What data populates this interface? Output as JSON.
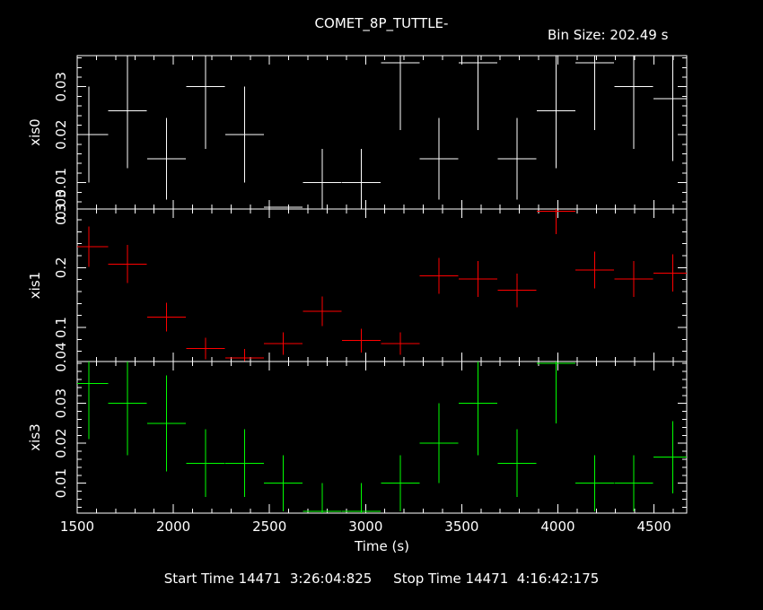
{
  "header": {
    "title": "COMET_8P_TUTTLE-",
    "bin_size": "Bin Size: 202.49 s"
  },
  "footer": {
    "time_range": "Start Time 14471  3:26:04:825     Stop Time 14471  4:16:42:175"
  },
  "chart_data": [
    {
      "type": "scatter",
      "error_bars": true,
      "ylabel": "xis0",
      "color": "#ffffff",
      "xlim": [
        1500,
        4670
      ],
      "ylim": [
        0.0045,
        0.0365
      ],
      "yticks": [
        0.01,
        0.02,
        0.03
      ],
      "y_tick_labels": [
        "0.01",
        "0.02",
        "0.03"
      ],
      "bottom_tick_label": "0.03",
      "points": [
        {
          "x": 1560,
          "xerr": 100,
          "y": 0.02,
          "yerr": 0.01
        },
        {
          "x": 1762,
          "xerr": 100,
          "y": 0.025,
          "yerr": 0.012
        },
        {
          "x": 1965,
          "xerr": 100,
          "y": 0.015,
          "yerr": 0.0085
        },
        {
          "x": 2167,
          "xerr": 100,
          "y": 0.03,
          "yerr": 0.013
        },
        {
          "x": 2370,
          "xerr": 100,
          "y": 0.02,
          "yerr": 0.01
        },
        {
          "x": 2572,
          "xerr": 100,
          "y": 0.0049,
          "yerr": 0.0
        },
        {
          "x": 2775,
          "xerr": 100,
          "y": 0.01,
          "yerr": 0.007
        },
        {
          "x": 2977,
          "xerr": 100,
          "y": 0.01,
          "yerr": 0.007
        },
        {
          "x": 3180,
          "xerr": 100,
          "y": 0.035,
          "yerr": 0.014
        },
        {
          "x": 3382,
          "xerr": 100,
          "y": 0.015,
          "yerr": 0.0085
        },
        {
          "x": 3585,
          "xerr": 100,
          "y": 0.035,
          "yerr": 0.014
        },
        {
          "x": 3787,
          "xerr": 100,
          "y": 0.015,
          "yerr": 0.0085
        },
        {
          "x": 3990,
          "xerr": 100,
          "y": 0.025,
          "yerr": 0.012
        },
        {
          "x": 4192,
          "xerr": 100,
          "y": 0.035,
          "yerr": 0.014
        },
        {
          "x": 4395,
          "xerr": 100,
          "y": 0.03,
          "yerr": 0.013
        },
        {
          "x": 4597,
          "xerr": 100,
          "y": 0.0275,
          "yerr": 0.013
        }
      ]
    },
    {
      "type": "scatter",
      "error_bars": true,
      "ylabel": "xis1",
      "color": "#ff0000",
      "xlim": [
        1500,
        4670
      ],
      "ylim": [
        0.043,
        0.298
      ],
      "yticks": [
        0.1,
        0.2
      ],
      "y_tick_labels": [
        "0.1",
        "0.2"
      ],
      "bottom_tick_label": "0.04",
      "top_tick_label": "0.3",
      "points": [
        {
          "x": 1560,
          "xerr": 100,
          "y": 0.235,
          "yerr": 0.034
        },
        {
          "x": 1762,
          "xerr": 100,
          "y": 0.206,
          "yerr": 0.032
        },
        {
          "x": 1965,
          "xerr": 100,
          "y": 0.117,
          "yerr": 0.024
        },
        {
          "x": 2167,
          "xerr": 100,
          "y": 0.065,
          "yerr": 0.018
        },
        {
          "x": 2370,
          "xerr": 100,
          "y": 0.049,
          "yerr": 0.015
        },
        {
          "x": 2572,
          "xerr": 100,
          "y": 0.073,
          "yerr": 0.019
        },
        {
          "x": 2775,
          "xerr": 100,
          "y": 0.127,
          "yerr": 0.025
        },
        {
          "x": 2977,
          "xerr": 100,
          "y": 0.078,
          "yerr": 0.02
        },
        {
          "x": 3180,
          "xerr": 100,
          "y": 0.073,
          "yerr": 0.019
        },
        {
          "x": 3382,
          "xerr": 100,
          "y": 0.186,
          "yerr": 0.03
        },
        {
          "x": 3585,
          "xerr": 100,
          "y": 0.181,
          "yerr": 0.03
        },
        {
          "x": 3787,
          "xerr": 100,
          "y": 0.162,
          "yerr": 0.028
        },
        {
          "x": 3990,
          "xerr": 100,
          "y": 0.294,
          "yerr": 0.038
        },
        {
          "x": 4192,
          "xerr": 100,
          "y": 0.196,
          "yerr": 0.031
        },
        {
          "x": 4395,
          "xerr": 100,
          "y": 0.181,
          "yerr": 0.03
        },
        {
          "x": 4597,
          "xerr": 100,
          "y": 0.191,
          "yerr": 0.031
        }
      ]
    },
    {
      "type": "scatter",
      "error_bars": true,
      "ylabel": "xis3",
      "color": "#00ff00",
      "xlabel": "Time (s)",
      "xlim": [
        1500,
        4670
      ],
      "ylim": [
        0.0025,
        0.0405
      ],
      "xticks": [
        1500,
        2000,
        2500,
        3000,
        3500,
        4000,
        4500
      ],
      "x_tick_labels": [
        "1500",
        "2000",
        "2500",
        "3000",
        "3500",
        "4000",
        "4500"
      ],
      "yticks": [
        0.01,
        0.02,
        0.03
      ],
      "y_tick_labels": [
        "0.01",
        "0.02",
        "0.03"
      ],
      "points": [
        {
          "x": 1560,
          "xerr": 100,
          "y": 0.035,
          "yerr": 0.014
        },
        {
          "x": 1762,
          "xerr": 100,
          "y": 0.03,
          "yerr": 0.013
        },
        {
          "x": 1965,
          "xerr": 100,
          "y": 0.025,
          "yerr": 0.012
        },
        {
          "x": 2167,
          "xerr": 100,
          "y": 0.015,
          "yerr": 0.0085
        },
        {
          "x": 2370,
          "xerr": 100,
          "y": 0.015,
          "yerr": 0.0085
        },
        {
          "x": 2572,
          "xerr": 100,
          "y": 0.01,
          "yerr": 0.007
        },
        {
          "x": 2775,
          "xerr": 100,
          "y": 0.003,
          "yerr": 0.007
        },
        {
          "x": 2977,
          "xerr": 100,
          "y": 0.003,
          "yerr": 0.007
        },
        {
          "x": 3180,
          "xerr": 100,
          "y": 0.01,
          "yerr": 0.007
        },
        {
          "x": 3382,
          "xerr": 100,
          "y": 0.02,
          "yerr": 0.01
        },
        {
          "x": 3585,
          "xerr": 100,
          "y": 0.03,
          "yerr": 0.013
        },
        {
          "x": 3787,
          "xerr": 100,
          "y": 0.015,
          "yerr": 0.0085
        },
        {
          "x": 3990,
          "xerr": 100,
          "y": 0.04,
          "yerr": 0.015
        },
        {
          "x": 4192,
          "xerr": 100,
          "y": 0.01,
          "yerr": 0.007
        },
        {
          "x": 4395,
          "xerr": 100,
          "y": 0.01,
          "yerr": 0.007
        },
        {
          "x": 4597,
          "xerr": 100,
          "y": 0.0165,
          "yerr": 0.009
        }
      ]
    }
  ]
}
